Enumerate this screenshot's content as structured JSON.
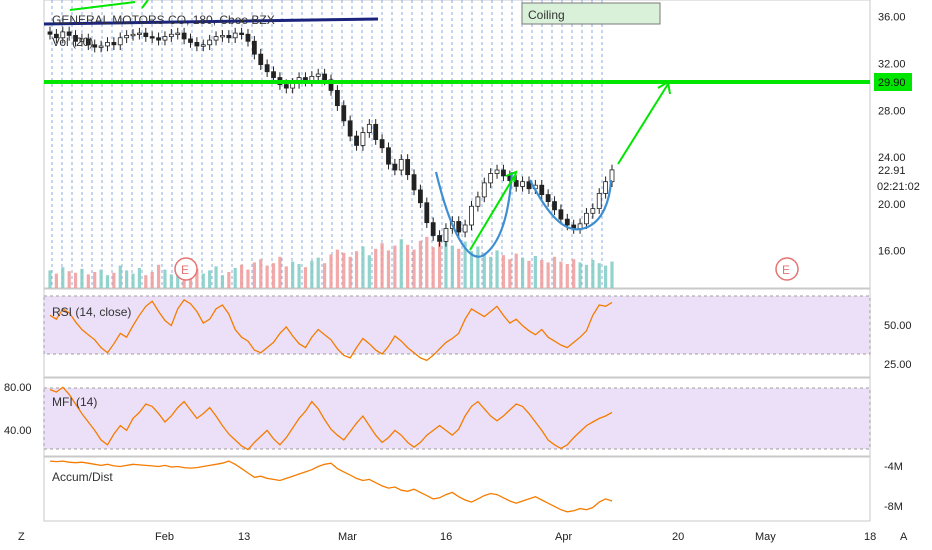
{
  "colors": {
    "up": "#26a69a",
    "down": "#ef5350",
    "green_line": "#00e600",
    "navy": "#1a237e",
    "cup": "#3d8fd1",
    "band": "#e8d9f7",
    "osc": "#f57c00",
    "grid": "#6f95d8"
  },
  "header": {
    "symbol_title": "GENERAL MOTORS CO, 180, Cboe BZX",
    "vol_label": "Vol (20)",
    "pattern_label": "Coiling"
  },
  "price_axis": {
    "ticks": [
      {
        "value": 36,
        "label": "36.00"
      },
      {
        "value": 32,
        "label": "32.00"
      },
      {
        "value": 28,
        "label": "28.00"
      },
      {
        "value": 24,
        "label": "24.00"
      },
      {
        "value": 20,
        "label": "20.00"
      },
      {
        "value": 16,
        "label": "16.00"
      }
    ],
    "resistance": {
      "value": 29.9,
      "label": "29.90"
    },
    "last": {
      "value": 22.91,
      "label": "22.91"
    },
    "countdown": "02:21:02"
  },
  "earnings_marker": "E",
  "rsi": {
    "label": "RSI (14, close)",
    "ticks": [
      {
        "value": 50,
        "label": "50.00"
      },
      {
        "value": 25,
        "label": "25.00"
      }
    ]
  },
  "mfi": {
    "label": "MFI (14)",
    "ticks": [
      {
        "value": 80,
        "label": "80.00"
      },
      {
        "value": 40,
        "label": "40.00"
      }
    ]
  },
  "ad": {
    "label": "Accum/Dist",
    "ticks": [
      {
        "value": -4,
        "label": "-4M"
      },
      {
        "value": -8,
        "label": "-8M"
      }
    ]
  },
  "time_axis": {
    "labels": [
      "Feb",
      "13",
      "Mar",
      "16",
      "Apr",
      "20",
      "May",
      "18"
    ],
    "left_button": "Z",
    "right_button": "A"
  },
  "chart_data": {
    "type": "candlestick",
    "title": "GENERAL MOTORS CO, 180, Cboe BZX",
    "price_range": [
      13.5,
      37
    ],
    "close_series": [
      34.5,
      34.2,
      34.7,
      34.4,
      33.9,
      34.1,
      33.6,
      33.4,
      33.5,
      33.8,
      33.6,
      34.2,
      34.4,
      34.5,
      34.6,
      34.3,
      34.2,
      34.0,
      34.3,
      34.5,
      34.6,
      34.1,
      33.8,
      33.5,
      33.6,
      34.0,
      34.3,
      34.4,
      34.2,
      34.6,
      34.5,
      33.9,
      32.8,
      31.9,
      31.3,
      30.8,
      30.2,
      29.9,
      30.3,
      30.8,
      30.5,
      30.9,
      31.1,
      30.6,
      29.7,
      28.4,
      27.1,
      25.8,
      25.0,
      26.1,
      26.8,
      25.5,
      24.8,
      23.4,
      22.9,
      23.8,
      22.5,
      21.2,
      20.1,
      18.4,
      17.3,
      16.8,
      17.9,
      18.5,
      17.6,
      18.2,
      19.8,
      20.6,
      21.8,
      22.6,
      22.9,
      22.4,
      22.0,
      21.5,
      21.9,
      21.3,
      21.6,
      20.8,
      20.2,
      19.5,
      18.7,
      18.2,
      17.9,
      18.3,
      19.2,
      19.6,
      20.9,
      21.9,
      22.91
    ],
    "volume_series": [
      2.2,
      1.8,
      2.6,
      2.1,
      1.9,
      2.4,
      1.7,
      2.0,
      2.3,
      1.6,
      1.9,
      2.8,
      2.2,
      1.8,
      2.5,
      1.6,
      2.0,
      2.9,
      2.3,
      1.7,
      2.1,
      2.6,
      1.9,
      2.4,
      1.8,
      2.2,
      2.7,
      1.6,
      2.0,
      2.5,
      2.9,
      2.3,
      3.2,
      3.6,
      2.8,
      3.1,
      3.9,
      2.7,
      3.3,
      3.0,
      2.6,
      3.4,
      3.8,
      3.1,
      4.2,
      4.8,
      4.4,
      3.9,
      4.6,
      5.2,
      4.1,
      4.9,
      5.6,
      4.7,
      5.3,
      6.1,
      5.4,
      4.8,
      5.9,
      6.4,
      5.1,
      5.7,
      6.6,
      5.3,
      4.9,
      5.8,
      4.6,
      5.2,
      4.4,
      3.9,
      4.7,
      4.1,
      3.6,
      4.3,
      3.8,
      3.4,
      4.0,
      3.5,
      3.2,
      3.9,
      3.3,
      3.0,
      3.6,
      3.2,
      2.9,
      3.5,
      3.1,
      2.8,
      3.3
    ],
    "rsi_series": [
      55,
      52,
      60,
      57,
      50,
      44,
      40,
      36,
      30,
      26,
      33,
      41,
      38,
      47,
      55,
      62,
      66,
      58,
      51,
      47,
      60,
      67,
      64,
      58,
      49,
      52,
      60,
      63,
      56,
      44,
      38,
      35,
      28,
      26,
      30,
      34,
      41,
      46,
      39,
      33,
      30,
      38,
      44,
      40,
      36,
      29,
      24,
      22,
      30,
      37,
      33,
      28,
      25,
      31,
      39,
      35,
      30,
      26,
      22,
      20,
      24,
      29,
      34,
      37,
      41,
      52,
      60,
      57,
      54,
      58,
      62,
      55,
      49,
      52,
      47,
      43,
      40,
      44,
      38,
      35,
      32,
      30,
      34,
      38,
      43,
      55,
      63,
      62,
      65
    ],
    "mfi_series": [
      82,
      80,
      84,
      78,
      70,
      62,
      55,
      48,
      40,
      36,
      45,
      52,
      48,
      58,
      63,
      70,
      68,
      62,
      55,
      60,
      67,
      72,
      65,
      58,
      62,
      67,
      60,
      52,
      45,
      40,
      35,
      32,
      38,
      43,
      48,
      41,
      36,
      42,
      50,
      58,
      64,
      72,
      66,
      57,
      49,
      44,
      40,
      47,
      54,
      60,
      52,
      44,
      38,
      42,
      48,
      44,
      38,
      34,
      38,
      44,
      48,
      52,
      48,
      44,
      49,
      60,
      68,
      72,
      66,
      60,
      56,
      60,
      65,
      70,
      68,
      62,
      55,
      48,
      40,
      36,
      33,
      36,
      42,
      47,
      52,
      55,
      58,
      60,
      63
    ],
    "ad_series": [
      -3.9,
      -3.95,
      -3.9,
      -4.0,
      -4.05,
      -4.0,
      -4.1,
      -4.2,
      -4.3,
      -4.2,
      -4.35,
      -4.4,
      -4.3,
      -4.2,
      -4.25,
      -4.3,
      -4.35,
      -4.4,
      -4.3,
      -4.45,
      -4.4,
      -4.5,
      -4.55,
      -4.5,
      -4.4,
      -4.3,
      -4.2,
      -4.1,
      -3.9,
      -4.2,
      -4.6,
      -5.0,
      -5.4,
      -5.3,
      -5.5,
      -5.6,
      -5.7,
      -5.5,
      -5.3,
      -5.1,
      -4.9,
      -4.7,
      -4.4,
      -4.2,
      -4.1,
      -4.6,
      -4.9,
      -5.2,
      -5.5,
      -5.7,
      -5.6,
      -5.9,
      -6.2,
      -6.4,
      -6.3,
      -6.6,
      -6.7,
      -6.5,
      -6.8,
      -7.1,
      -7.4,
      -7.3,
      -7.0,
      -6.8,
      -7.2,
      -7.5,
      -7.7,
      -7.4,
      -7.1,
      -6.9,
      -7.0,
      -7.3,
      -7.6,
      -7.8,
      -7.6,
      -7.4,
      -7.2,
      -7.5,
      -7.8,
      -8.1,
      -8.4,
      -8.6,
      -8.5,
      -8.3,
      -8.4,
      -8.2,
      -7.7,
      -7.4,
      -7.6
    ]
  }
}
